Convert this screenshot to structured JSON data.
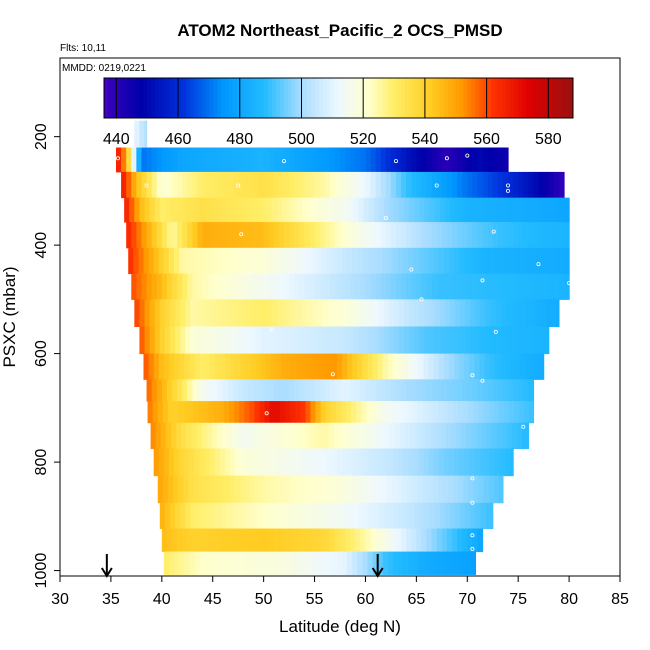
{
  "chart_data": {
    "type": "heatmap",
    "title": "ATOM2 Northeast_Pacific_2 OCS_PMSD",
    "flights_label": "Flts: 10,11",
    "mmdd_label": "MMDD: 0219,0221",
    "xlabel": "Latitude (deg N)",
    "ylabel": "PSXC (mbar)",
    "xlim": [
      30,
      85
    ],
    "ylim": [
      1010,
      55
    ],
    "x_ticks": [
      30,
      35,
      40,
      45,
      50,
      55,
      60,
      65,
      70,
      75,
      80,
      85
    ],
    "y_ticks": [
      200,
      400,
      600,
      800,
      1000
    ],
    "colorbar": {
      "range": [
        436,
        588
      ],
      "ticks": [
        440,
        460,
        480,
        500,
        520,
        540,
        560,
        580
      ],
      "palette": [
        [
          430,
          "#8800ee"
        ],
        [
          438,
          "#3300bb"
        ],
        [
          448,
          "#0000aa"
        ],
        [
          462,
          "#0033dd"
        ],
        [
          475,
          "#0099ff"
        ],
        [
          488,
          "#22bbff"
        ],
        [
          500,
          "#aaddff"
        ],
        [
          512,
          "#eef8ff"
        ],
        [
          522,
          "#ffffcc"
        ],
        [
          530,
          "#ffee66"
        ],
        [
          542,
          "#ffcc22"
        ],
        [
          552,
          "#ff9900"
        ],
        [
          562,
          "#ff3300"
        ],
        [
          574,
          "#dd0000"
        ],
        [
          588,
          "#991111"
        ]
      ]
    },
    "profile_arrows_lat": [
      34.6,
      61.2
    ],
    "layers": [
      {
        "p": 200,
        "lat": [
          37.3,
          38.5
        ],
        "v": [
          [
            37.3,
            512
          ],
          [
            38.5,
            500
          ]
        ]
      },
      {
        "p": 240,
        "lat": [
          35.5,
          74
        ],
        "v": [
          [
            35.5,
            570
          ],
          [
            36.5,
            550
          ],
          [
            38,
            470
          ],
          [
            42,
            480
          ],
          [
            50,
            485
          ],
          [
            60,
            470
          ],
          [
            65,
            450
          ],
          [
            68,
            440
          ],
          [
            71,
            450
          ],
          [
            74,
            445
          ]
        ]
      },
      {
        "p": 290,
        "lat": [
          36,
          79.5
        ],
        "v": [
          [
            36,
            570
          ],
          [
            37.5,
            545
          ],
          [
            40,
            520
          ],
          [
            44,
            530
          ],
          [
            50,
            535
          ],
          [
            56,
            525
          ],
          [
            60,
            512
          ],
          [
            64,
            490
          ],
          [
            70,
            470
          ],
          [
            74,
            460
          ],
          [
            77,
            450
          ],
          [
            79.5,
            438
          ]
        ]
      },
      {
        "p": 335,
        "lat": [
          36.3,
          80
        ],
        "v": [
          [
            36.3,
            568
          ],
          [
            38,
            545
          ],
          [
            40,
            530
          ],
          [
            44,
            535
          ],
          [
            50,
            530
          ],
          [
            58,
            515
          ],
          [
            62,
            500
          ],
          [
            70,
            485
          ],
          [
            80,
            480
          ]
        ]
      },
      {
        "p": 380,
        "lat": [
          36.5,
          80
        ],
        "v": [
          [
            36.5,
            566
          ],
          [
            39,
            545
          ],
          [
            41,
            525
          ],
          [
            44,
            548
          ],
          [
            50,
            545
          ],
          [
            55,
            530
          ],
          [
            60,
            515
          ],
          [
            66,
            500
          ],
          [
            73,
            490
          ],
          [
            80,
            485
          ]
        ]
      },
      {
        "p": 430,
        "lat": [
          36.7,
          80
        ],
        "v": [
          [
            36.7,
            564
          ],
          [
            39,
            548
          ],
          [
            42,
            525
          ],
          [
            50,
            520
          ],
          [
            58,
            505
          ],
          [
            65,
            495
          ],
          [
            72,
            485
          ],
          [
            80,
            482
          ]
        ]
      },
      {
        "p": 475,
        "lat": [
          37,
          80
        ],
        "v": [
          [
            37,
            560
          ],
          [
            40,
            545
          ],
          [
            43,
            525
          ],
          [
            50,
            515
          ],
          [
            60,
            500
          ],
          [
            67,
            490
          ],
          [
            74,
            488
          ],
          [
            80,
            485
          ]
        ]
      },
      {
        "p": 525,
        "lat": [
          37.3,
          79
        ],
        "v": [
          [
            37.3,
            562
          ],
          [
            40,
            540
          ],
          [
            43,
            525
          ],
          [
            50,
            530
          ],
          [
            58,
            520
          ],
          [
            64,
            505
          ],
          [
            72,
            490
          ],
          [
            79,
            482
          ]
        ]
      },
      {
        "p": 575,
        "lat": [
          37.8,
          78
        ],
        "v": [
          [
            37.8,
            560
          ],
          [
            40,
            540
          ],
          [
            43,
            520
          ],
          [
            50,
            510
          ],
          [
            58,
            505
          ],
          [
            66,
            492
          ],
          [
            72,
            488
          ],
          [
            78,
            485
          ]
        ]
      },
      {
        "p": 625,
        "lat": [
          38.2,
          77.5
        ],
        "v": [
          [
            38.2,
            560
          ],
          [
            40,
            545
          ],
          [
            44,
            530
          ],
          [
            52,
            548
          ],
          [
            57,
            552
          ],
          [
            62,
            525
          ],
          [
            68,
            500
          ],
          [
            72,
            490
          ],
          [
            77.5,
            482
          ]
        ]
      },
      {
        "p": 670,
        "lat": [
          38.5,
          76.5
        ],
        "v": [
          [
            38.5,
            558
          ],
          [
            41,
            540
          ],
          [
            44,
            515
          ],
          [
            48,
            505
          ],
          [
            52,
            500
          ],
          [
            58,
            510
          ],
          [
            64,
            500
          ],
          [
            70,
            495
          ],
          [
            76.5,
            488
          ]
        ]
      },
      {
        "p": 705,
        "lat": [
          38.6,
          76.5
        ],
        "v": [
          [
            38.6,
            556
          ],
          [
            41,
            540
          ],
          [
            46,
            548
          ],
          [
            49,
            560
          ],
          [
            51,
            572
          ],
          [
            54,
            562
          ],
          [
            56,
            540
          ],
          [
            62,
            515
          ],
          [
            70,
            500
          ],
          [
            76.5,
            490
          ]
        ]
      },
      {
        "p": 750,
        "lat": [
          38.9,
          76
        ],
        "v": [
          [
            38.9,
            555
          ],
          [
            42,
            535
          ],
          [
            48,
            515
          ],
          [
            56,
            525
          ],
          [
            62,
            512
          ],
          [
            68,
            500
          ],
          [
            76,
            488
          ]
        ]
      },
      {
        "p": 800,
        "lat": [
          39.2,
          74.5
        ],
        "v": [
          [
            39.2,
            552
          ],
          [
            42,
            538
          ],
          [
            48,
            520
          ],
          [
            56,
            512
          ],
          [
            62,
            505
          ],
          [
            68,
            495
          ],
          [
            74.5,
            488
          ]
        ]
      },
      {
        "p": 850,
        "lat": [
          39.6,
          73.5
        ],
        "v": [
          [
            39.6,
            550
          ],
          [
            43,
            535
          ],
          [
            50,
            525
          ],
          [
            57,
            520
          ],
          [
            64,
            508
          ],
          [
            73.5,
            492
          ]
        ]
      },
      {
        "p": 900,
        "lat": [
          39.8,
          72.5
        ],
        "v": [
          [
            39.8,
            548
          ],
          [
            43,
            530
          ],
          [
            50,
            522
          ],
          [
            57,
            515
          ],
          [
            64,
            505
          ],
          [
            72.5,
            490
          ]
        ]
      },
      {
        "p": 945,
        "lat": [
          40.0,
          71.5
        ],
        "v": [
          [
            40.0,
            545
          ],
          [
            43,
            540
          ],
          [
            50,
            542
          ],
          [
            56,
            538
          ],
          [
            60,
            525
          ],
          [
            66,
            500
          ],
          [
            71.5,
            480
          ]
        ]
      },
      {
        "p": 985,
        "lat": [
          40.2,
          70.8
        ],
        "v": [
          [
            40.2,
            530
          ],
          [
            44,
            522
          ],
          [
            52,
            518
          ],
          [
            58,
            510
          ],
          [
            62,
            490
          ],
          [
            66,
            482
          ],
          [
            70.8,
            478
          ]
        ]
      }
    ],
    "point_markers": [
      [
        37.0,
        200
      ],
      [
        35.7,
        240
      ],
      [
        63,
        245
      ],
      [
        68,
        240
      ],
      [
        70,
        235
      ],
      [
        52,
        245
      ],
      [
        47.5,
        290
      ],
      [
        67,
        290
      ],
      [
        74,
        290
      ],
      [
        74,
        300
      ],
      [
        38.5,
        290
      ],
      [
        62,
        350
      ],
      [
        47.8,
        380
      ],
      [
        72.6,
        375
      ],
      [
        48.5,
        450
      ],
      [
        64.5,
        445
      ],
      [
        77,
        435
      ],
      [
        80,
        470
      ],
      [
        71.5,
        465
      ],
      [
        65.5,
        500
      ],
      [
        50.8,
        555
      ],
      [
        72.8,
        560
      ],
      [
        56.8,
        638
      ],
      [
        70.5,
        640
      ],
      [
        71.5,
        650
      ],
      [
        50.3,
        710
      ],
      [
        75.5,
        735
      ],
      [
        70.5,
        830
      ],
      [
        70.5,
        875
      ],
      [
        70.5,
        935
      ],
      [
        70.5,
        960
      ]
    ]
  }
}
